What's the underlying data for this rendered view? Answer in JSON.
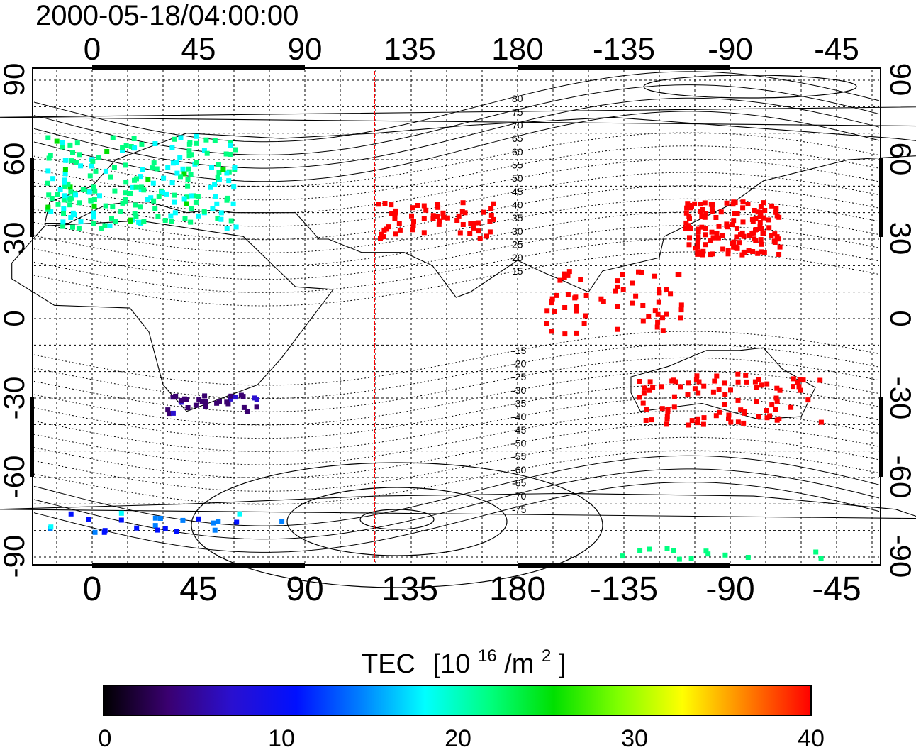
{
  "header": {
    "timestamp": "2000-05-18/04:00:00"
  },
  "axes": {
    "top_ticks": [
      "0",
      "45",
      "90",
      "135",
      "180",
      "-135",
      "-90",
      "-45"
    ],
    "bottom_ticks": [
      "0",
      "45",
      "90",
      "135",
      "180",
      "-135",
      "-90",
      "-45"
    ],
    "left_ticks": [
      "90",
      "60",
      "30",
      "0",
      "-30",
      "-60",
      "-90"
    ],
    "right_ticks": [
      "90",
      "60",
      "30",
      "0",
      "-30",
      "-60",
      "-90"
    ]
  },
  "contour_labels": [
    "80",
    "75",
    "70",
    "65",
    "60",
    "55",
    "50",
    "45",
    "40",
    "35",
    "30",
    "25",
    "20",
    "15",
    "-15",
    "-20",
    "-25",
    "-30",
    "-35",
    "-40",
    "-45",
    "-50",
    "-55",
    "-60",
    "-65",
    "-70",
    "-75"
  ],
  "colorbar": {
    "title_prefix": "TEC",
    "title_bracket_open": "[10",
    "title_sup1": "16",
    "title_mid": "/m",
    "title_sup2": "2",
    "title_close": "]",
    "tick_labels": [
      "0",
      "10",
      "20",
      "30",
      "40"
    ],
    "stops": [
      "#000000",
      "#3a0070",
      "#2a10d0",
      "#0010ff",
      "#0080ff",
      "#00ffff",
      "#00ff80",
      "#00e000",
      "#80ff00",
      "#ffff00",
      "#ff8000",
      "#ff0000"
    ]
  },
  "colors": {
    "meridian_line": "#ff0000",
    "grid": "#000000"
  }
}
